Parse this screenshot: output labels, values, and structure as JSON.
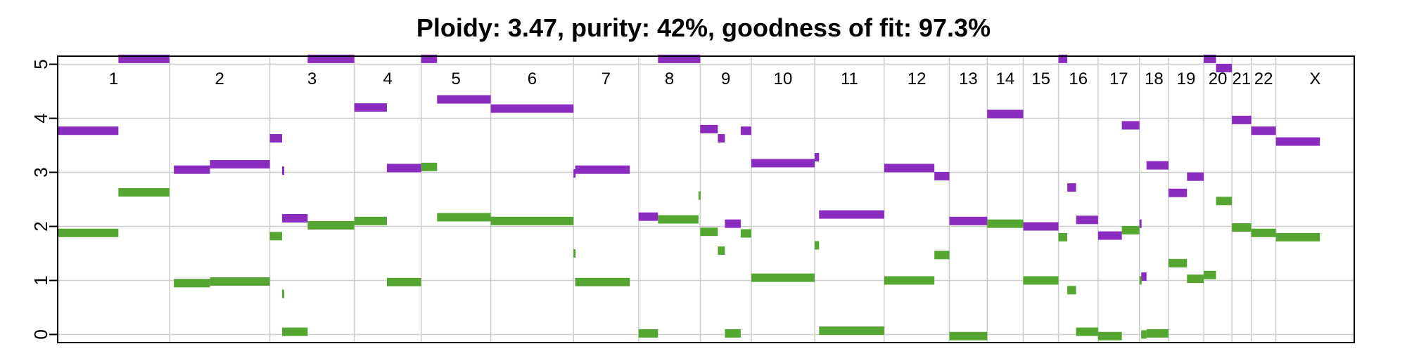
{
  "chart_data": {
    "type": "segment",
    "title": "Ploidy: 3.47, purity: 42%, goodness of fit: 97.3%",
    "xlabel": "",
    "ylabel": "",
    "ylim": [
      -0.15,
      5.15
    ],
    "yticks": [
      "0",
      "1",
      "2",
      "3",
      "4",
      "5"
    ],
    "grid": true,
    "colors": {
      "major": "#8a2cbf",
      "minor": "#55a630",
      "grid": "#cccccc",
      "frame": "#000000"
    },
    "chromosomes": [
      {
        "label": "1",
        "start": 0,
        "end": 1.27
      },
      {
        "label": "2",
        "start": 1.27,
        "end": 2.41
      },
      {
        "label": "3",
        "start": 2.41,
        "end": 3.37
      },
      {
        "label": "4",
        "start": 3.37,
        "end": 4.13
      },
      {
        "label": "5",
        "start": 4.13,
        "end": 4.92
      },
      {
        "label": "6",
        "start": 4.92,
        "end": 5.86
      },
      {
        "label": "7",
        "start": 5.86,
        "end": 6.6
      },
      {
        "label": "8",
        "start": 6.6,
        "end": 7.3
      },
      {
        "label": "9",
        "start": 7.3,
        "end": 7.88
      },
      {
        "label": "10",
        "start": 7.88,
        "end": 8.6
      },
      {
        "label": "11",
        "start": 8.6,
        "end": 9.39
      },
      {
        "label": "12",
        "start": 9.39,
        "end": 10.13
      },
      {
        "label": "13",
        "start": 10.13,
        "end": 10.56
      },
      {
        "label": "14",
        "start": 10.56,
        "end": 10.97
      },
      {
        "label": "15",
        "start": 10.97,
        "end": 11.37
      },
      {
        "label": "16",
        "start": 11.37,
        "end": 11.82
      },
      {
        "label": "17",
        "start": 11.82,
        "end": 12.29
      },
      {
        "label": "18",
        "start": 12.29,
        "end": 12.62
      },
      {
        "label": "19",
        "start": 12.62,
        "end": 13.02
      },
      {
        "label": "20",
        "start": 13.02,
        "end": 13.34
      },
      {
        "label": "21",
        "start": 13.34,
        "end": 13.56
      },
      {
        "label": "22",
        "start": 13.56,
        "end": 13.84
      },
      {
        "label": "X",
        "start": 13.84,
        "end": 14.73
      }
    ],
    "series": [
      {
        "segments": [
          {
            "start": 0.0,
            "end": 0.69,
            "value": 3.77
          },
          {
            "start": 0.69,
            "end": 1.27,
            "value": 5.1
          },
          {
            "start": 1.32,
            "end": 1.73,
            "value": 3.05
          },
          {
            "start": 1.73,
            "end": 2.41,
            "value": 3.15
          },
          {
            "start": 2.41,
            "end": 2.55,
            "value": 3.63
          },
          {
            "start": 2.55,
            "end": 2.57,
            "value": 3.03
          },
          {
            "start": 2.55,
            "end": 2.84,
            "value": 2.15
          },
          {
            "start": 2.84,
            "end": 3.37,
            "value": 5.1
          },
          {
            "start": 3.37,
            "end": 3.74,
            "value": 4.2
          },
          {
            "start": 3.74,
            "end": 4.13,
            "value": 3.08
          },
          {
            "start": 4.13,
            "end": 4.31,
            "value": 5.1
          },
          {
            "start": 4.31,
            "end": 4.92,
            "value": 4.35
          },
          {
            "start": 4.92,
            "end": 5.86,
            "value": 4.18
          },
          {
            "start": 5.86,
            "end": 5.88,
            "value": 2.98
          },
          {
            "start": 5.88,
            "end": 6.5,
            "value": 3.05
          },
          {
            "start": 6.6,
            "end": 6.82,
            "value": 2.18
          },
          {
            "start": 6.82,
            "end": 7.3,
            "value": 5.1
          },
          {
            "start": 7.3,
            "end": 7.5,
            "value": 3.8
          },
          {
            "start": 7.5,
            "end": 7.58,
            "value": 3.63
          },
          {
            "start": 7.58,
            "end": 7.76,
            "value": 2.05
          },
          {
            "start": 7.76,
            "end": 7.88,
            "value": 3.77
          },
          {
            "start": 7.88,
            "end": 8.6,
            "value": 3.17
          },
          {
            "start": 8.6,
            "end": 8.65,
            "value": 3.28
          },
          {
            "start": 8.65,
            "end": 9.39,
            "value": 2.22
          },
          {
            "start": 9.39,
            "end": 9.96,
            "value": 3.08
          },
          {
            "start": 9.96,
            "end": 10.13,
            "value": 2.93
          },
          {
            "start": 10.13,
            "end": 10.56,
            "value": 2.1
          },
          {
            "start": 10.56,
            "end": 10.97,
            "value": 4.08
          },
          {
            "start": 10.97,
            "end": 11.37,
            "value": 2.0
          },
          {
            "start": 11.37,
            "end": 11.47,
            "value": 5.1
          },
          {
            "start": 11.47,
            "end": 11.57,
            "value": 2.72
          },
          {
            "start": 11.57,
            "end": 11.82,
            "value": 2.12
          },
          {
            "start": 11.82,
            "end": 12.09,
            "value": 1.83
          },
          {
            "start": 12.09,
            "end": 12.29,
            "value": 3.87
          },
          {
            "start": 12.29,
            "end": 12.31,
            "value": 2.05
          },
          {
            "start": 12.31,
            "end": 12.37,
            "value": 1.07
          },
          {
            "start": 12.37,
            "end": 12.62,
            "value": 3.13
          },
          {
            "start": 12.62,
            "end": 12.83,
            "value": 2.62
          },
          {
            "start": 12.83,
            "end": 13.02,
            "value": 2.92
          },
          {
            "start": 13.02,
            "end": 13.16,
            "value": 5.1
          },
          {
            "start": 13.16,
            "end": 13.34,
            "value": 4.93
          },
          {
            "start": 13.34,
            "end": 13.56,
            "value": 3.97
          },
          {
            "start": 13.56,
            "end": 13.84,
            "value": 3.77
          },
          {
            "start": 13.84,
            "end": 14.34,
            "value": 3.57
          }
        ]
      },
      {
        "segments": [
          {
            "start": 0.0,
            "end": 0.69,
            "value": 1.88
          },
          {
            "start": 0.69,
            "end": 1.27,
            "value": 2.63
          },
          {
            "start": 1.32,
            "end": 1.73,
            "value": 0.95
          },
          {
            "start": 1.73,
            "end": 2.41,
            "value": 0.98
          },
          {
            "start": 2.41,
            "end": 2.55,
            "value": 1.82
          },
          {
            "start": 2.55,
            "end": 2.57,
            "value": 0.75
          },
          {
            "start": 2.55,
            "end": 2.84,
            "value": 0.05
          },
          {
            "start": 2.84,
            "end": 3.37,
            "value": 2.02
          },
          {
            "start": 3.37,
            "end": 3.74,
            "value": 2.1
          },
          {
            "start": 3.74,
            "end": 4.13,
            "value": 0.97
          },
          {
            "start": 4.13,
            "end": 4.31,
            "value": 3.1
          },
          {
            "start": 4.31,
            "end": 4.92,
            "value": 2.17
          },
          {
            "start": 4.92,
            "end": 5.86,
            "value": 2.1
          },
          {
            "start": 5.86,
            "end": 5.88,
            "value": 1.5
          },
          {
            "start": 5.88,
            "end": 6.5,
            "value": 0.97
          },
          {
            "start": 6.6,
            "end": 6.82,
            "value": 0.02
          },
          {
            "start": 6.82,
            "end": 7.28,
            "value": 2.13
          },
          {
            "start": 7.28,
            "end": 7.3,
            "value": 2.57
          },
          {
            "start": 7.3,
            "end": 7.5,
            "value": 1.9
          },
          {
            "start": 7.5,
            "end": 7.58,
            "value": 1.55
          },
          {
            "start": 7.58,
            "end": 7.76,
            "value": 0.02
          },
          {
            "start": 7.76,
            "end": 7.88,
            "value": 1.87
          },
          {
            "start": 7.88,
            "end": 8.6,
            "value": 1.05
          },
          {
            "start": 8.6,
            "end": 8.65,
            "value": 1.65
          },
          {
            "start": 8.65,
            "end": 9.39,
            "value": 0.07
          },
          {
            "start": 9.39,
            "end": 9.96,
            "value": 1.0
          },
          {
            "start": 9.96,
            "end": 10.13,
            "value": 1.47
          },
          {
            "start": 10.13,
            "end": 10.56,
            "value": -0.03
          },
          {
            "start": 10.56,
            "end": 10.97,
            "value": 2.05
          },
          {
            "start": 10.97,
            "end": 11.37,
            "value": 1.0
          },
          {
            "start": 11.37,
            "end": 11.47,
            "value": 1.8
          },
          {
            "start": 11.47,
            "end": 11.57,
            "value": 0.82
          },
          {
            "start": 11.57,
            "end": 11.82,
            "value": 0.05
          },
          {
            "start": 11.82,
            "end": 12.09,
            "value": -0.03
          },
          {
            "start": 12.09,
            "end": 12.29,
            "value": 1.93
          },
          {
            "start": 12.29,
            "end": 12.31,
            "value": 1.0
          },
          {
            "start": 12.31,
            "end": 12.37,
            "value": 0.0
          },
          {
            "start": 12.37,
            "end": 12.62,
            "value": 0.02
          },
          {
            "start": 12.62,
            "end": 12.83,
            "value": 1.32
          },
          {
            "start": 12.83,
            "end": 13.02,
            "value": 1.03
          },
          {
            "start": 13.02,
            "end": 13.16,
            "value": 1.1
          },
          {
            "start": 13.16,
            "end": 13.34,
            "value": 2.47
          },
          {
            "start": 13.34,
            "end": 13.56,
            "value": 1.98
          },
          {
            "start": 13.56,
            "end": 13.84,
            "value": 1.88
          },
          {
            "start": 13.84,
            "end": 14.34,
            "value": 1.8
          }
        ]
      }
    ]
  }
}
